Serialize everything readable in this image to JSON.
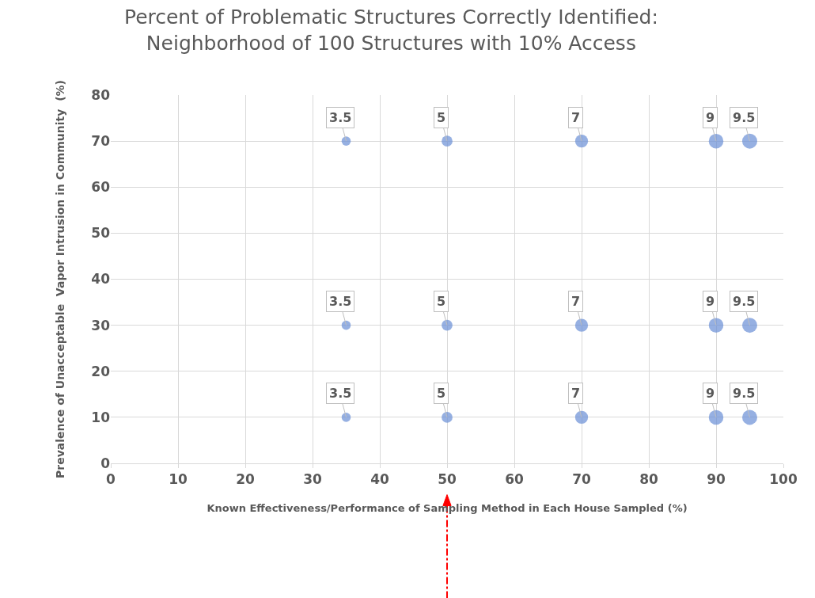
{
  "chart_data": {
    "type": "bubble",
    "title": "Percent of Problematic Structures Correctly Identified:\nNeighborhood of 100 Structures with 10% Access",
    "xlabel": "Known Effectiveness/Performance of Sampling Method in Each House Sampled (%)",
    "ylabel": "Prevalence of Unacceptable  Vapor Intrusion in Community  (%)",
    "x": [
      35,
      50,
      70,
      90,
      95,
      35,
      50,
      70,
      90,
      95,
      35,
      50,
      70,
      90,
      95
    ],
    "series": [
      {
        "color": "#6a8fd6",
        "values": [
          70,
          70,
          70,
          70,
          70,
          30,
          30,
          30,
          30,
          30,
          10,
          10,
          10,
          10,
          10
        ],
        "sizes": [
          3.5,
          5,
          7,
          9,
          9.5,
          3.5,
          5,
          7,
          9,
          9.5,
          3.5,
          5,
          7,
          9,
          9.5
        ],
        "value_labels": [
          "3.5",
          "5",
          "7",
          "9",
          "9.5",
          "3.5",
          "5",
          "7",
          "9",
          "9.5",
          "3.5",
          "5",
          "7",
          "9",
          "9.5"
        ]
      }
    ],
    "xlim": [
      0,
      100
    ],
    "xticks": [
      0,
      10,
      20,
      30,
      40,
      50,
      60,
      70,
      80,
      90,
      100
    ],
    "ylim": [
      0,
      80
    ],
    "yticks": [
      0,
      10,
      20,
      30,
      40,
      50,
      60,
      70,
      80
    ],
    "grid": true
  }
}
